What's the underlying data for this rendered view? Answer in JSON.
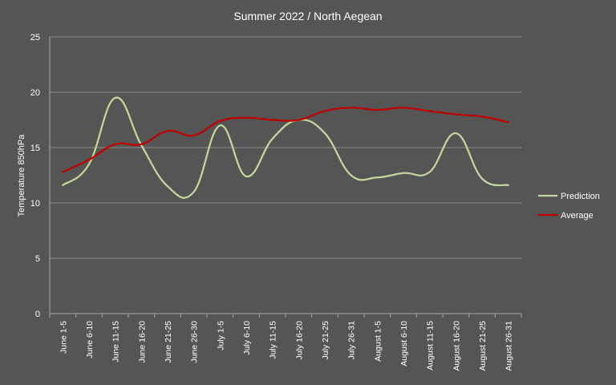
{
  "chart_data": {
    "type": "line",
    "title": "Summer 2022 / North Aegean",
    "xlabel": "",
    "ylabel": "Temperature 850hPa",
    "ylim": [
      0,
      25
    ],
    "yticks": [
      0,
      5,
      10,
      15,
      20,
      25
    ],
    "grid": true,
    "legend_position": "right",
    "categories": [
      "June 1-5",
      "June 6-10",
      "June 11-15",
      "June 16-20",
      "June 21-25",
      "June 26-30",
      "July 1-5",
      "July 6-10",
      "July 11-15",
      "July 16-20",
      "July 21-25",
      "July 26-31",
      "August 1-5",
      "August 6-10",
      "August 11-15",
      "August 16-20",
      "August 21-25",
      "August 26-31"
    ],
    "series": [
      {
        "name": "Prediction",
        "color": "#c4d79b",
        "values": [
          11.6,
          13.5,
          19.5,
          15.2,
          11.5,
          11.0,
          17.0,
          12.4,
          15.8,
          17.5,
          16.3,
          12.5,
          12.3,
          12.7,
          12.8,
          16.3,
          12.2,
          11.6
        ]
      },
      {
        "name": "Average",
        "color": "#c00000",
        "values": [
          12.8,
          13.9,
          15.3,
          15.3,
          16.5,
          16.1,
          17.4,
          17.7,
          17.5,
          17.5,
          18.3,
          18.6,
          18.4,
          18.6,
          18.3,
          18.0,
          17.8,
          17.3
        ]
      }
    ]
  }
}
